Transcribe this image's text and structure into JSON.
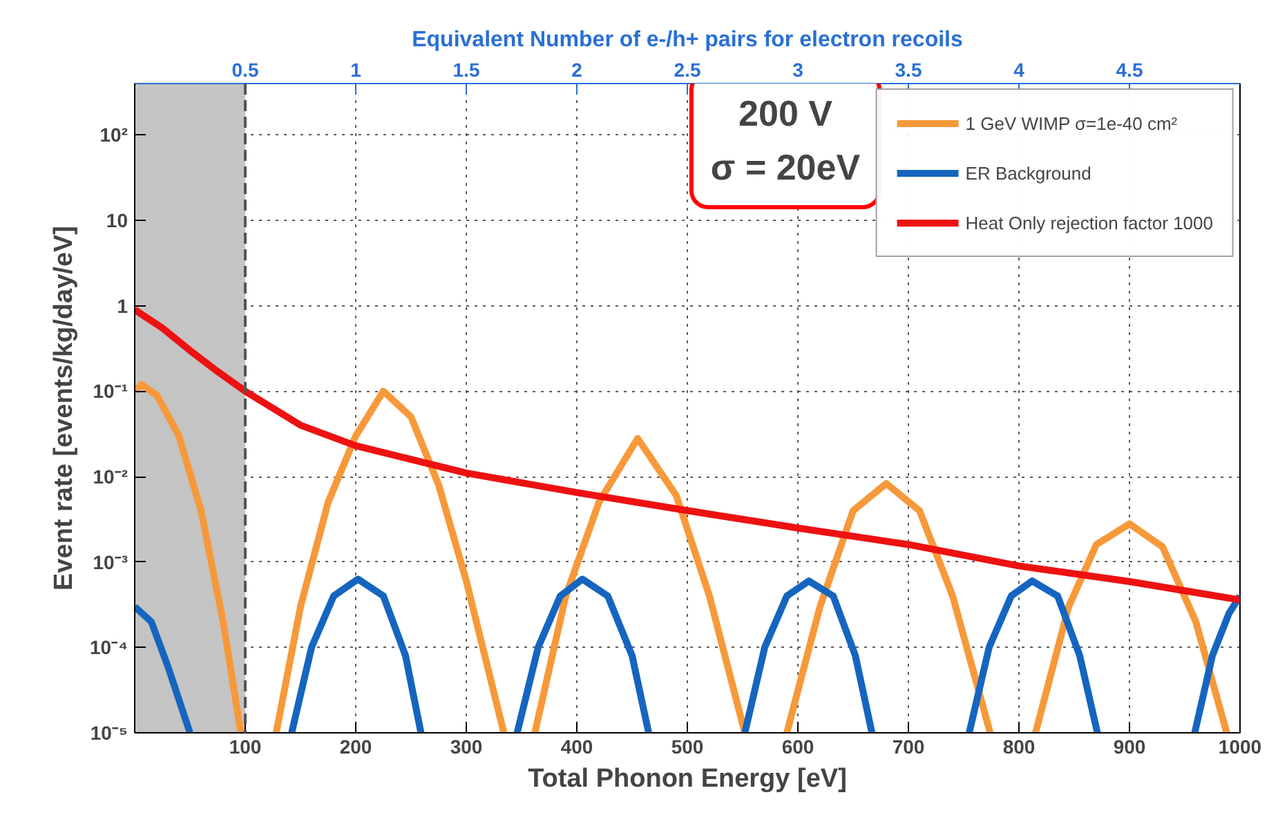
{
  "chart_data": {
    "type": "line",
    "xlabel": "Total Phonon Energy [eV]",
    "ylabel": "Event rate [events/kg/day/eV]",
    "x2label": "Equivalent Number of e-/h+ pairs for electron recoils",
    "log": "y",
    "xlim": [
      0,
      1000
    ],
    "xticks": [
      100,
      200,
      300,
      400,
      500,
      600,
      700,
      800,
      900,
      1000
    ],
    "x2lim": [
      0,
      5
    ],
    "x2ticks": [
      0.5,
      1,
      1.5,
      2,
      2.5,
      3,
      3.5,
      4,
      4.5
    ],
    "ylim": [
      1e-05,
      400
    ],
    "yticks": [
      {
        "value": 1e-05,
        "label": "10⁻⁵"
      },
      {
        "value": 0.0001,
        "label": "10⁻⁴"
      },
      {
        "value": 0.001,
        "label": "10⁻³"
      },
      {
        "value": 0.01,
        "label": "10⁻²"
      },
      {
        "value": 0.1,
        "label": "10⁻¹"
      },
      1,
      10,
      {
        "value": 100,
        "label": "10²"
      }
    ],
    "grid": true,
    "legend": "top right",
    "line_style": "solid",
    "series": [
      {
        "name": "1 GeV WIMP σ=1e-40 cm²",
        "color": "#f7993a",
        "x": [
          0,
          6,
          20,
          40,
          60,
          80,
          96,
          110,
          128,
          150,
          175,
          200,
          225,
          250,
          275,
          300,
          334,
          345,
          362,
          390,
          420,
          455,
          490,
          520,
          552,
          570,
          590,
          620,
          650,
          680,
          710,
          740,
          774,
          790,
          815,
          845,
          870,
          900,
          930,
          960,
          988
        ],
        "values": [
          0.1,
          0.12,
          0.09,
          0.03,
          0.004,
          0.0002,
          1e-05,
          null,
          1e-05,
          0.0003,
          0.005,
          0.03,
          0.1,
          0.05,
          0.008,
          0.0006,
          1e-05,
          null,
          1e-05,
          0.0004,
          0.005,
          0.028,
          0.006,
          0.0004,
          1e-05,
          null,
          1e-05,
          0.0003,
          0.004,
          0.0083,
          0.004,
          0.0004,
          1e-05,
          null,
          1e-05,
          0.0003,
          0.0016,
          0.0028,
          0.0015,
          0.0002,
          1e-05
        ]
      },
      {
        "name": "ER Background",
        "color": "#1565c0",
        "x": [
          0,
          15,
          30,
          50,
          70,
          142,
          160,
          180,
          202,
          225,
          245,
          259,
          300,
          346,
          365,
          385,
          405,
          428,
          450,
          465,
          500,
          552,
          570,
          590,
          610,
          632,
          652,
          667,
          700,
          755,
          773,
          793,
          812,
          835,
          855,
          871,
          900,
          959,
          975,
          990,
          1000
        ],
        "values": [
          0.0003,
          0.0002,
          6e-05,
          1e-05,
          null,
          1e-05,
          0.0001,
          0.0004,
          0.00063,
          0.0004,
          8e-05,
          1e-05,
          null,
          1e-05,
          0.0001,
          0.0004,
          0.00063,
          0.0004,
          8e-05,
          1e-05,
          null,
          1e-05,
          0.0001,
          0.0004,
          0.0006,
          0.0004,
          8e-05,
          1e-05,
          null,
          1e-05,
          0.0001,
          0.0004,
          0.0006,
          0.0004,
          8e-05,
          1e-05,
          null,
          1e-05,
          8e-05,
          0.00025,
          0.0004
        ]
      },
      {
        "name": "Heat Only rejection factor 1000",
        "color": "#ee1111",
        "x": [
          0,
          25,
          50,
          75,
          100,
          150,
          200,
          300,
          400,
          500,
          600,
          700,
          800,
          900,
          1000
        ],
        "values": [
          0.9,
          0.55,
          0.3,
          0.17,
          0.1,
          0.04,
          0.023,
          0.011,
          0.0065,
          0.004,
          0.0025,
          0.0016,
          0.0009,
          0.00059,
          0.00036
        ]
      }
    ],
    "bands": [
      {
        "axis": "x",
        "from": 0,
        "to": 100,
        "color": "#c4c4c4"
      }
    ],
    "ref_lines": [
      {
        "axis": "x",
        "value": 100,
        "color": "#555555",
        "line_style": "dashed"
      }
    ],
    "annotations": [
      "200 V",
      "σ = 20eV"
    ]
  }
}
